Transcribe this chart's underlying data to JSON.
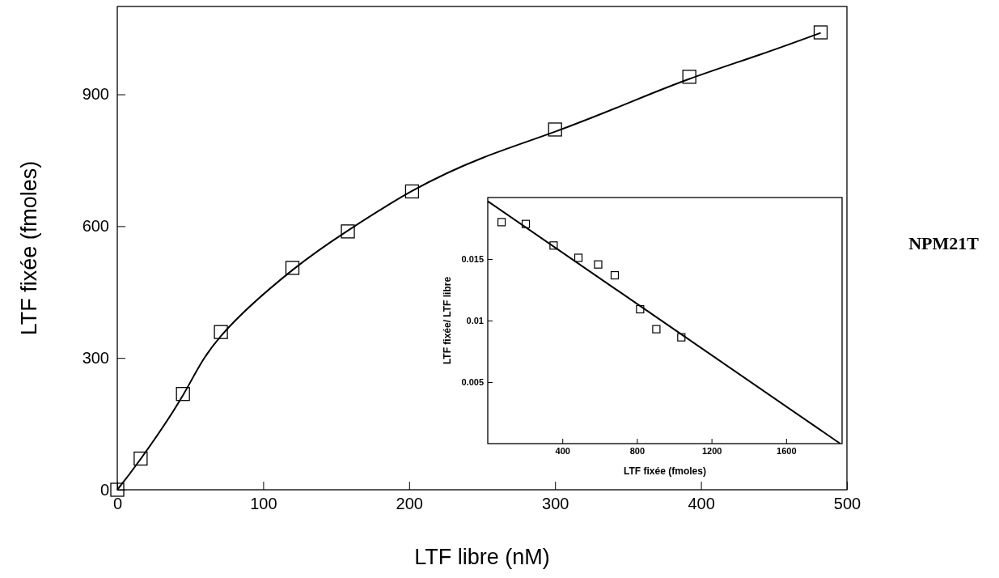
{
  "chart_data": [
    {
      "type": "scatter",
      "xlabel": "LTF libre (nM)",
      "ylabel": "LTF fixée (fmoles)",
      "xlim": [
        0,
        500
      ],
      "ylim": [
        0,
        1100
      ],
      "xticks": [
        0,
        100,
        200,
        300,
        400,
        500
      ],
      "yticks": [
        0,
        300,
        600,
        900
      ],
      "annotations": [
        "NPM21T"
      ],
      "series": [
        {
          "type": "scatter",
          "color": "#000000",
          "marker": "square",
          "x": [
            0,
            16,
            45,
            71,
            120,
            158,
            202,
            300,
            392,
            482
          ],
          "values": [
            0,
            71,
            218,
            359,
            505,
            588,
            679,
            820,
            940,
            1041
          ]
        },
        {
          "type": "line",
          "color": "#000000",
          "marker": "none",
          "x": [
            0,
            16,
            45,
            71,
            120,
            158,
            202,
            250,
            300,
            350,
            392,
            440,
            482
          ],
          "values": [
            0,
            70,
            215,
            350,
            500,
            590,
            680,
            755,
            815,
            880,
            935,
            990,
            1040
          ]
        }
      ]
    },
    {
      "type": "scatter",
      "xlabel": "LTF fixée (fmoles)",
      "ylabel": "LTF fixée/ LTF libre",
      "xlim": [
        0,
        1900
      ],
      "ylim": [
        0,
        0.02
      ],
      "xticks": [
        400,
        800,
        1200,
        1600
      ],
      "yticks": [
        0.005,
        0.01,
        0.015
      ],
      "series": [
        {
          "type": "scatter",
          "color": "#000000",
          "marker": "square",
          "x": [
            74,
            204,
            353,
            486,
            592,
            681,
            817,
            904,
            1038
          ],
          "values": [
            0.018,
            0.01785,
            0.0161,
            0.0151,
            0.01456,
            0.01368,
            0.01092,
            0.0093,
            0.00864
          ]
        },
        {
          "type": "line",
          "color": "#000000",
          "marker": "none",
          "x": [
            0,
            1890
          ],
          "values": [
            0.0197,
            0
          ]
        }
      ]
    }
  ]
}
